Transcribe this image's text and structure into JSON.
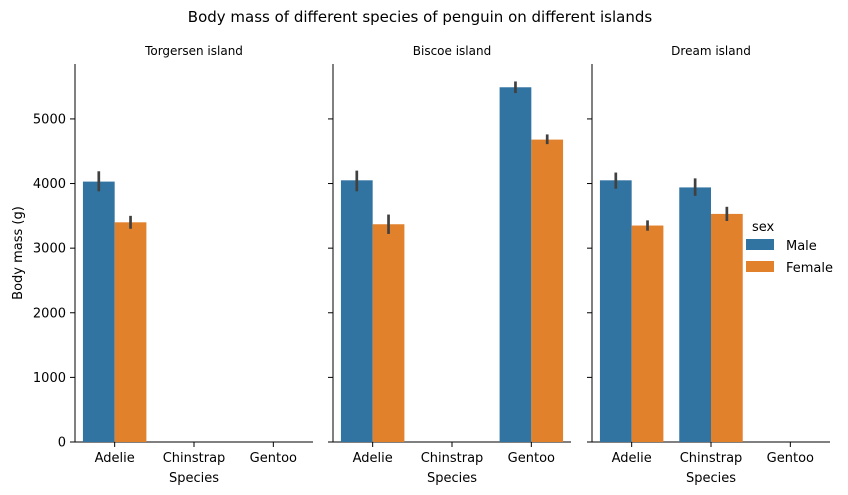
{
  "figure": {
    "suptitle": "Body mass of different species of penguin on different islands",
    "ylabel": "Body mass (g)"
  },
  "colors": {
    "Male": "#3274a1",
    "Female": "#e1812c",
    "errorbar": "#404040",
    "axis": "#000000"
  },
  "legend": {
    "title": "sex",
    "placement": "right",
    "entries": [
      "Male",
      "Female"
    ]
  },
  "chart_data": [
    {
      "type": "bar",
      "title": "Torgersen island",
      "xlabel": "Species",
      "ylabel": "Body mass (g)",
      "categories": [
        "Adelie",
        "Chinstrap",
        "Gentoo"
      ],
      "yticks": [
        0,
        1000,
        2000,
        3000,
        4000,
        5000
      ],
      "ylim": [
        0,
        5850
      ],
      "grid": false,
      "series": [
        {
          "name": "Male",
          "values": [
            4030,
            null,
            null
          ],
          "err_low": [
            3880,
            null,
            null
          ],
          "err_high": [
            4190,
            null,
            null
          ]
        },
        {
          "name": "Female",
          "values": [
            3400,
            null,
            null
          ],
          "err_low": [
            3300,
            null,
            null
          ],
          "err_high": [
            3500,
            null,
            null
          ]
        }
      ]
    },
    {
      "type": "bar",
      "title": "Biscoe island",
      "xlabel": "Species",
      "ylabel": "",
      "categories": [
        "Adelie",
        "Chinstrap",
        "Gentoo"
      ],
      "yticks": [
        0,
        1000,
        2000,
        3000,
        4000,
        5000
      ],
      "ylim": [
        0,
        5850
      ],
      "grid": false,
      "series": [
        {
          "name": "Male",
          "values": [
            4050,
            null,
            5490
          ],
          "err_low": [
            3880,
            null,
            5400
          ],
          "err_high": [
            4200,
            null,
            5580
          ]
        },
        {
          "name": "Female",
          "values": [
            3370,
            null,
            4680
          ],
          "err_low": [
            3220,
            null,
            4610
          ],
          "err_high": [
            3520,
            null,
            4760
          ]
        }
      ]
    },
    {
      "type": "bar",
      "title": "Dream island",
      "xlabel": "Species",
      "ylabel": "",
      "categories": [
        "Adelie",
        "Chinstrap",
        "Gentoo"
      ],
      "yticks": [
        0,
        1000,
        2000,
        3000,
        4000,
        5000
      ],
      "ylim": [
        0,
        5850
      ],
      "grid": false,
      "series": [
        {
          "name": "Male",
          "values": [
            4050,
            3940,
            null
          ],
          "err_low": [
            3920,
            3810,
            null
          ],
          "err_high": [
            4170,
            4080,
            null
          ]
        },
        {
          "name": "Female",
          "values": [
            3350,
            3530,
            null
          ],
          "err_low": [
            3270,
            3420,
            null
          ],
          "err_high": [
            3430,
            3640,
            null
          ]
        }
      ]
    }
  ]
}
